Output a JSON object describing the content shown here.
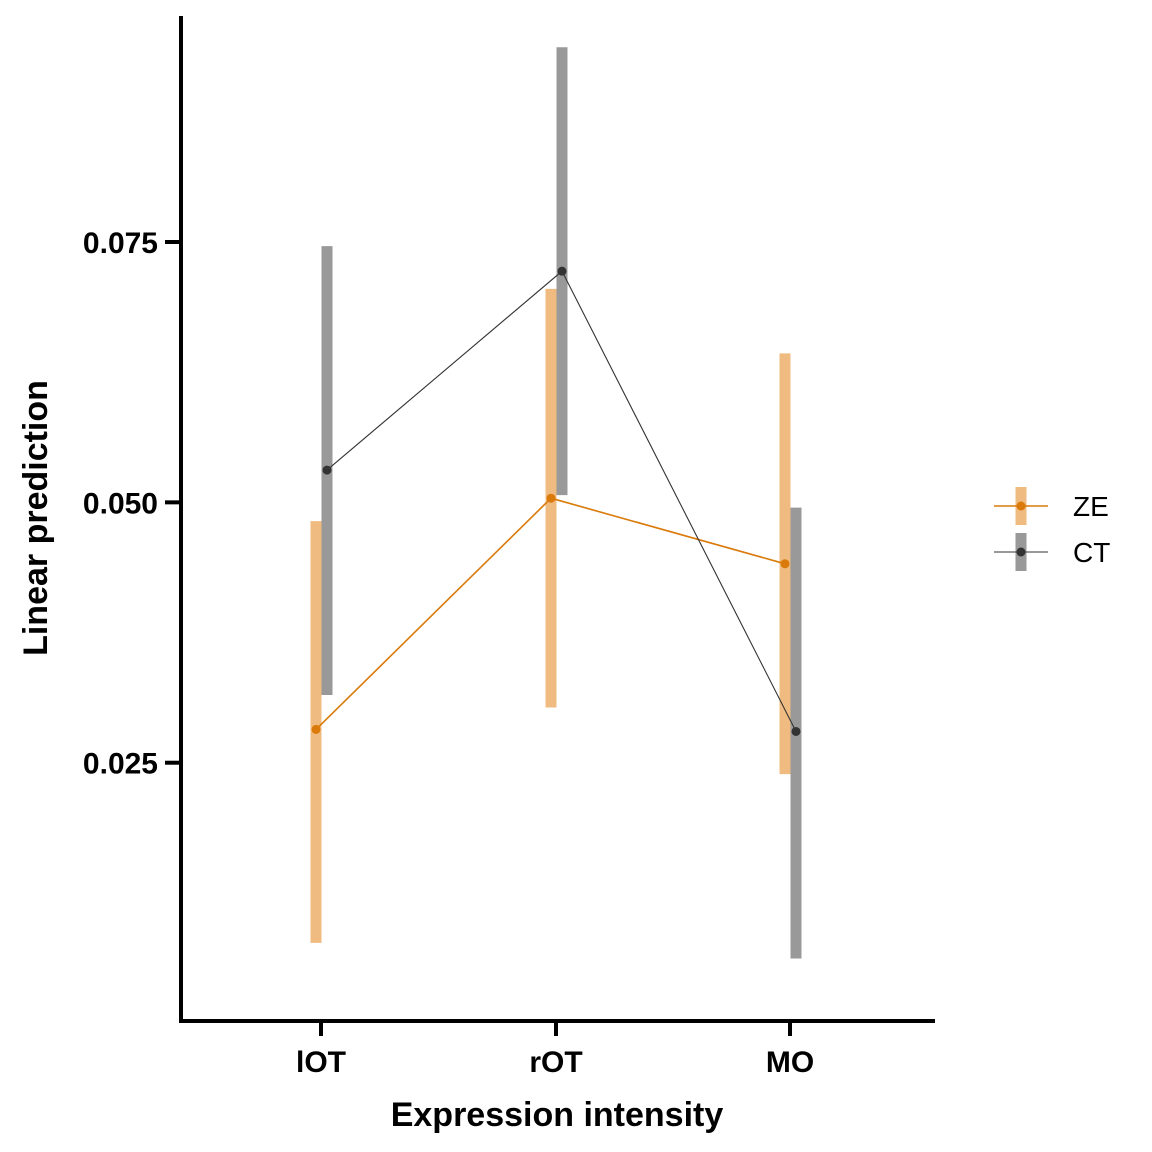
{
  "chart_data": {
    "type": "line",
    "xlabel": "Expression intensity",
    "ylabel": "Linear prediction",
    "categories": [
      "lOT",
      "rOT",
      "MO"
    ],
    "yticks": [
      0.025,
      0.05,
      0.075
    ],
    "ytick_labels": [
      "0.025",
      "0.050",
      "0.075"
    ],
    "ylim": [
      0.0002,
      0.0967
    ],
    "error_bars": true,
    "legend_position": "right",
    "grid": false,
    "series": [
      {
        "name": "ZE",
        "color": "#d97a0a",
        "bar_color": "#f0bb80",
        "values": [
          0.0282,
          0.0504,
          0.0441
        ],
        "lower": [
          0.0077,
          0.0303,
          0.0239
        ],
        "upper": [
          0.0482,
          0.0705,
          0.0643
        ]
      },
      {
        "name": "CT",
        "color": "#333333",
        "bar_color": "#999999",
        "values": [
          0.0531,
          0.0722,
          0.028
        ],
        "lower": [
          0.0315,
          0.0507,
          0.0062
        ],
        "upper": [
          0.0746,
          0.0937,
          0.0495
        ]
      }
    ]
  }
}
